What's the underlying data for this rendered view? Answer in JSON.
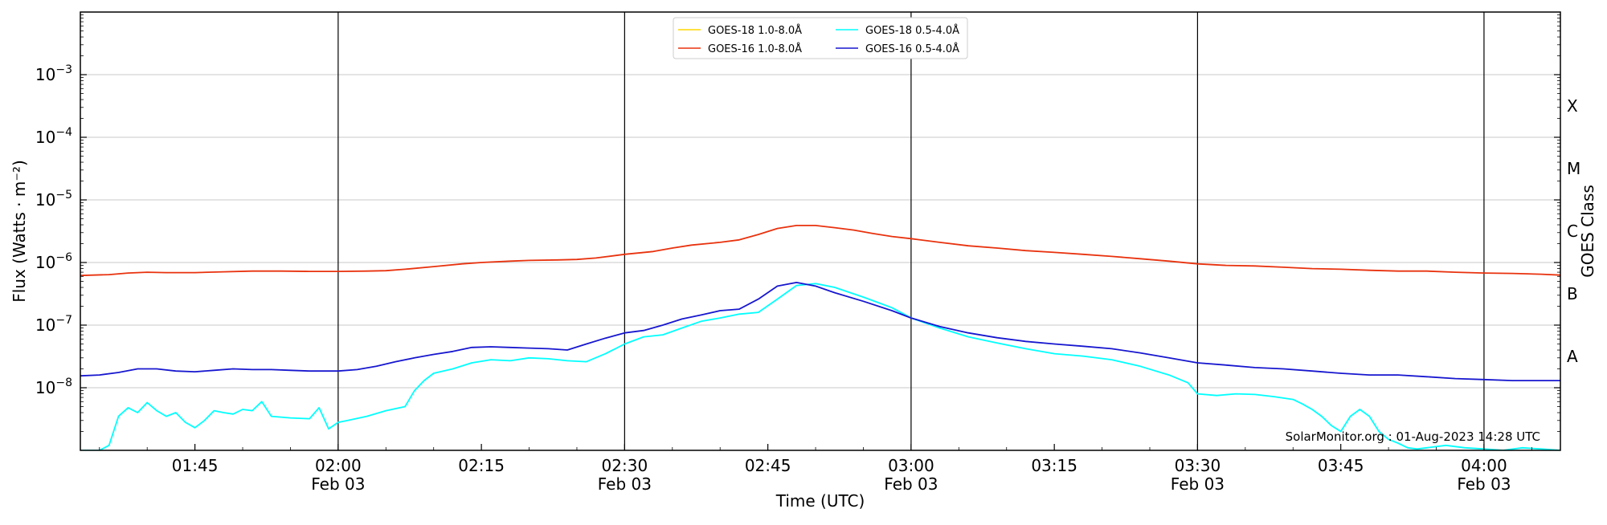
{
  "chart_data": {
    "type": "line",
    "y_scale": "log",
    "grid": "horizontal",
    "legend_placement": "top-center",
    "xlabel": "Time (UTC)",
    "ylabel": "Flux (Watts · m⁻²)",
    "ylabel_right": "GOES Class",
    "x_range": [
      "01:33",
      "04:08"
    ],
    "ylim": [
      1e-09,
      0.01
    ],
    "x_ticks": [
      {
        "time": "01:45",
        "label": "01:45",
        "date": ""
      },
      {
        "time": "02:00",
        "label": "02:00",
        "date": "Feb 03"
      },
      {
        "time": "02:15",
        "label": "02:15",
        "date": ""
      },
      {
        "time": "02:30",
        "label": "02:30",
        "date": "Feb 03"
      },
      {
        "time": "02:45",
        "label": "02:45",
        "date": ""
      },
      {
        "time": "03:00",
        "label": "03:00",
        "date": "Feb 03"
      },
      {
        "time": "03:15",
        "label": "03:15",
        "date": ""
      },
      {
        "time": "03:30",
        "label": "03:30",
        "date": "Feb 03"
      },
      {
        "time": "03:45",
        "label": "03:45",
        "date": ""
      },
      {
        "time": "04:00",
        "label": "04:00",
        "date": "Feb 03"
      }
    ],
    "y_ticks": [
      {
        "exp": -8,
        "value": 1e-08
      },
      {
        "exp": -7,
        "value": 1e-07
      },
      {
        "exp": -6,
        "value": 1e-06
      },
      {
        "exp": -5,
        "value": 1e-05
      },
      {
        "exp": -4,
        "value": 0.0001
      },
      {
        "exp": -3,
        "value": 0.001
      }
    ],
    "goes_classes": [
      {
        "label": "A",
        "value": 3.16e-08
      },
      {
        "label": "B",
        "value": 3.16e-07
      },
      {
        "label": "C",
        "value": 3.16e-06
      },
      {
        "label": "M",
        "value": 3.16e-05
      },
      {
        "label": "X",
        "value": 0.000316
      }
    ],
    "series": [
      {
        "name": "GOES-18 1.0-8.0Å",
        "color": "#ffd700",
        "x": [],
        "values": []
      },
      {
        "name": "GOES-16 1.0-8.0Å",
        "color": "#e8320e",
        "x": [
          "01:33",
          "01:36",
          "01:38",
          "01:40",
          "01:42",
          "01:45",
          "01:48",
          "01:51",
          "01:54",
          "01:57",
          "02:00",
          "02:03",
          "02:05",
          "02:07",
          "02:10",
          "02:13",
          "02:15",
          "02:18",
          "02:20",
          "02:23",
          "02:25",
          "02:27",
          "02:30",
          "02:33",
          "02:35",
          "02:37",
          "02:40",
          "02:42",
          "02:44",
          "02:46",
          "02:48",
          "02:50",
          "02:52",
          "02:54",
          "02:56",
          "02:58",
          "03:00",
          "03:03",
          "03:06",
          "03:09",
          "03:12",
          "03:15",
          "03:18",
          "03:21",
          "03:24",
          "03:27",
          "03:30",
          "03:33",
          "03:36",
          "03:39",
          "03:42",
          "03:45",
          "03:48",
          "03:51",
          "03:54",
          "03:57",
          "04:00",
          "04:03",
          "04:06",
          "04:08"
        ],
        "values": [
          6.2e-07,
          6.4e-07,
          6.8e-07,
          7e-07,
          6.9e-07,
          6.9e-07,
          7.1e-07,
          7.3e-07,
          7.3e-07,
          7.2e-07,
          7.2e-07,
          7.3e-07,
          7.4e-07,
          7.8e-07,
          8.6e-07,
          9.5e-07,
          1e-06,
          1.05e-06,
          1.08e-06,
          1.1e-06,
          1.12e-06,
          1.18e-06,
          1.35e-06,
          1.5e-06,
          1.7e-06,
          1.9e-06,
          2.1e-06,
          2.3e-06,
          2.8e-06,
          3.5e-06,
          3.9e-06,
          3.9e-06,
          3.6e-06,
          3.3e-06,
          2.9e-06,
          2.6e-06,
          2.4e-06,
          2.1e-06,
          1.85e-06,
          1.7e-06,
          1.55e-06,
          1.45e-06,
          1.35e-06,
          1.25e-06,
          1.15e-06,
          1.05e-06,
          9.5e-07,
          9e-07,
          8.8e-07,
          8.4e-07,
          8e-07,
          7.8e-07,
          7.5e-07,
          7.3e-07,
          7.3e-07,
          7e-07,
          6.8e-07,
          6.7e-07,
          6.5e-07,
          6.3e-07
        ]
      },
      {
        "name": "GOES-18 0.5-4.0Å",
        "color": "#00ffff",
        "x": [
          "01:33",
          "01:35",
          "01:36",
          "01:37",
          "01:38",
          "01:39",
          "01:40",
          "01:41",
          "01:42",
          "01:43",
          "01:44",
          "01:45",
          "01:46",
          "01:47",
          "01:48",
          "01:49",
          "01:50",
          "01:51",
          "01:52",
          "01:53",
          "01:55",
          "01:57",
          "01:58",
          "01:59",
          "02:00",
          "02:01",
          "02:03",
          "02:05",
          "02:07",
          "02:08",
          "02:09",
          "02:10",
          "02:12",
          "02:14",
          "02:16",
          "02:18",
          "02:20",
          "02:22",
          "02:24",
          "02:26",
          "02:28",
          "02:30",
          "02:32",
          "02:34",
          "02:36",
          "02:38",
          "02:40",
          "02:42",
          "02:44",
          "02:46",
          "02:48",
          "02:50",
          "02:52",
          "02:55",
          "02:58",
          "03:00",
          "03:03",
          "03:06",
          "03:09",
          "03:12",
          "03:15",
          "03:18",
          "03:21",
          "03:24",
          "03:27",
          "03:29",
          "03:30",
          "03:32",
          "03:34",
          "03:36",
          "03:38",
          "03:40",
          "03:41",
          "03:42",
          "03:43",
          "03:44",
          "03:45",
          "03:46",
          "03:47",
          "03:48",
          "03:49",
          "03:50",
          "03:51",
          "03:52",
          "03:53",
          "03:54",
          "03:56",
          "03:58",
          "04:00",
          "04:02",
          "04:04",
          "04:06",
          "04:08"
        ],
        "values": [
          1e-09,
          1e-09,
          1.2e-09,
          3.5e-09,
          4.8e-09,
          4e-09,
          5.8e-09,
          4.3e-09,
          3.5e-09,
          4e-09,
          2.8e-09,
          2.3e-09,
          3e-09,
          4.3e-09,
          4e-09,
          3.8e-09,
          4.5e-09,
          4.3e-09,
          6e-09,
          3.5e-09,
          3.3e-09,
          3.2e-09,
          4.8e-09,
          2.2e-09,
          2.8e-09,
          3e-09,
          3.5e-09,
          4.3e-09,
          5e-09,
          9e-09,
          1.3e-08,
          1.7e-08,
          2e-08,
          2.5e-08,
          2.8e-08,
          2.7e-08,
          3e-08,
          2.9e-08,
          2.7e-08,
          2.6e-08,
          3.5e-08,
          5e-08,
          6.5e-08,
          7e-08,
          9e-08,
          1.15e-07,
          1.3e-07,
          1.5e-07,
          1.6e-07,
          2.6e-07,
          4.3e-07,
          4.6e-07,
          4e-07,
          2.8e-07,
          1.9e-07,
          1.3e-07,
          9e-08,
          6.5e-08,
          5.2e-08,
          4.2e-08,
          3.5e-08,
          3.2e-08,
          2.8e-08,
          2.2e-08,
          1.6e-08,
          1.2e-08,
          8e-09,
          7.5e-09,
          8e-09,
          7.8e-09,
          7.2e-09,
          6.5e-09,
          5.5e-09,
          4.5e-09,
          3.5e-09,
          2.5e-09,
          2e-09,
          3.5e-09,
          4.5e-09,
          3.5e-09,
          2e-09,
          1.5e-09,
          1.3e-09,
          1.1e-09,
          1.05e-09,
          1.1e-09,
          1.2e-09,
          1.1e-09,
          1.05e-09,
          1e-09,
          1.1e-09,
          1.05e-09,
          1e-09
        ]
      },
      {
        "name": "GOES-16 0.5-4.0Å",
        "color": "#1717cf",
        "x": [
          "01:33",
          "01:35",
          "01:37",
          "01:39",
          "01:41",
          "01:43",
          "01:45",
          "01:47",
          "01:49",
          "01:51",
          "01:53",
          "01:55",
          "01:57",
          "02:00",
          "02:02",
          "02:04",
          "02:06",
          "02:08",
          "02:10",
          "02:12",
          "02:14",
          "02:16",
          "02:18",
          "02:20",
          "02:22",
          "02:24",
          "02:26",
          "02:28",
          "02:30",
          "02:32",
          "02:34",
          "02:36",
          "02:38",
          "02:40",
          "02:42",
          "02:44",
          "02:46",
          "02:48",
          "02:50",
          "02:52",
          "02:55",
          "02:58",
          "03:00",
          "03:03",
          "03:06",
          "03:09",
          "03:12",
          "03:15",
          "03:18",
          "03:21",
          "03:24",
          "03:27",
          "03:30",
          "03:33",
          "03:36",
          "03:39",
          "03:42",
          "03:45",
          "03:48",
          "03:51",
          "03:54",
          "03:57",
          "04:00",
          "04:03",
          "04:06",
          "04:08"
        ],
        "values": [
          1.55e-08,
          1.6e-08,
          1.75e-08,
          2e-08,
          2e-08,
          1.85e-08,
          1.8e-08,
          1.9e-08,
          2e-08,
          1.95e-08,
          1.95e-08,
          1.9e-08,
          1.85e-08,
          1.85e-08,
          1.95e-08,
          2.2e-08,
          2.6e-08,
          3e-08,
          3.4e-08,
          3.8e-08,
          4.4e-08,
          4.5e-08,
          4.4e-08,
          4.3e-08,
          4.2e-08,
          4e-08,
          5e-08,
          6.2e-08,
          7.5e-08,
          8.2e-08,
          1e-07,
          1.25e-07,
          1.45e-07,
          1.7e-07,
          1.8e-07,
          2.6e-07,
          4.2e-07,
          4.8e-07,
          4.2e-07,
          3.3e-07,
          2.4e-07,
          1.7e-07,
          1.3e-07,
          9.5e-08,
          7.5e-08,
          6.3e-08,
          5.5e-08,
          5e-08,
          4.6e-08,
          4.2e-08,
          3.6e-08,
          3e-08,
          2.5e-08,
          2.3e-08,
          2.1e-08,
          2e-08,
          1.85e-08,
          1.7e-08,
          1.6e-08,
          1.6e-08,
          1.5e-08,
          1.4e-08,
          1.35e-08,
          1.3e-08,
          1.3e-08,
          1.3e-08
        ]
      }
    ],
    "watermark": "SolarMonitor.org : 01-Aug-2023 14:28 UTC"
  }
}
